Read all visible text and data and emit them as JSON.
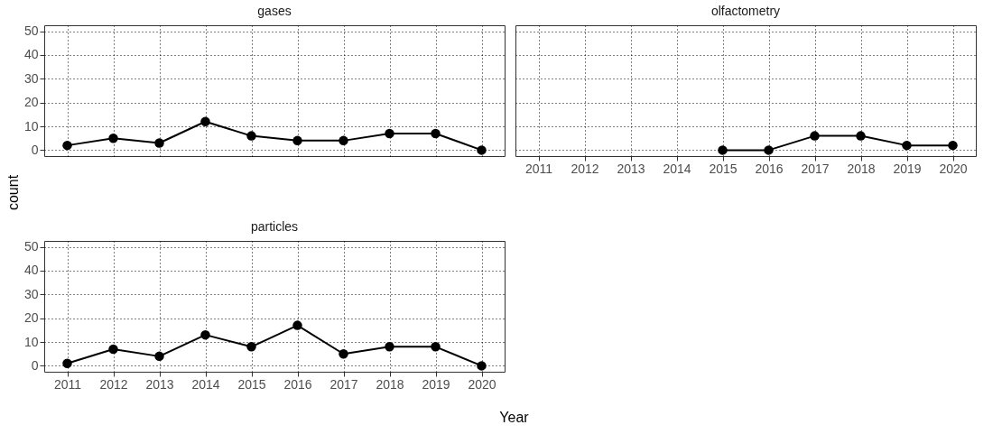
{
  "chart_data": [
    {
      "type": "line",
      "title": "gases",
      "ylabel": "count",
      "categories": [
        "2011",
        "2012",
        "2013",
        "2014",
        "2015",
        "2016",
        "2017",
        "2018",
        "2019",
        "2020"
      ],
      "series": [
        {
          "color": "#000000",
          "values": [
            2,
            5,
            3,
            12,
            6,
            4,
            4,
            7,
            7,
            0
          ]
        }
      ],
      "ylim": [
        -2.5,
        52.5
      ],
      "yticks": [
        0,
        10,
        20,
        30,
        40,
        50
      ],
      "grid": true,
      "marker": "circle",
      "tick_labels": "y"
    },
    {
      "type": "line",
      "title": "olfactometry",
      "categories": [
        "2011",
        "2012",
        "2013",
        "2014",
        "2015",
        "2016",
        "2017",
        "2018",
        "2019",
        "2020"
      ],
      "series": [
        {
          "color": "#000000",
          "values": [
            null,
            null,
            null,
            null,
            0,
            0,
            6,
            6,
            2,
            2
          ]
        }
      ],
      "ylim": [
        -2.5,
        52.5
      ],
      "yticks": [
        0,
        10,
        20,
        30,
        40,
        50
      ],
      "grid": true,
      "marker": "circle",
      "tick_labels": "x"
    },
    {
      "type": "line",
      "title": "particles",
      "xlabel": "Year",
      "categories": [
        "2011",
        "2012",
        "2013",
        "2014",
        "2015",
        "2016",
        "2017",
        "2018",
        "2019",
        "2020"
      ],
      "series": [
        {
          "color": "#000000",
          "values": [
            1,
            7,
            4,
            13,
            8,
            17,
            5,
            8,
            8,
            0
          ]
        }
      ],
      "ylim": [
        -2.5,
        52.5
      ],
      "yticks": [
        0,
        10,
        20,
        30,
        40,
        50
      ],
      "grid": true,
      "marker": "circle"
    }
  ]
}
